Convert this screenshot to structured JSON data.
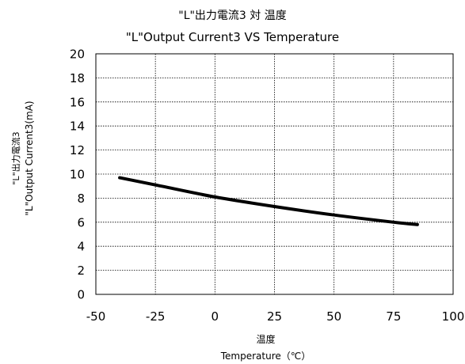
{
  "chart_data": {
    "type": "line",
    "title": "\"L\"出力電流3  対  温度",
    "subtitle": "\"L\"Output Current3  VS  Temperature",
    "xlabel": "温度",
    "xlabel2": "Temperature（℃）",
    "ylabel": "\"L\"出力電流3",
    "ylabel2": "\"L\"Output Current3(mA)",
    "xlim": [
      -50,
      100
    ],
    "ylim": [
      0,
      20
    ],
    "xticks": [
      -50,
      -25,
      0,
      25,
      50,
      75,
      100
    ],
    "yticks": [
      0,
      2,
      4,
      6,
      8,
      10,
      12,
      14,
      16,
      18,
      20
    ],
    "grid": true,
    "series": [
      {
        "name": "",
        "x": [
          -40,
          -25,
          0,
          25,
          50,
          75,
          85
        ],
        "y": [
          9.7,
          9.1,
          8.1,
          7.3,
          6.6,
          6.0,
          5.8
        ]
      }
    ]
  }
}
